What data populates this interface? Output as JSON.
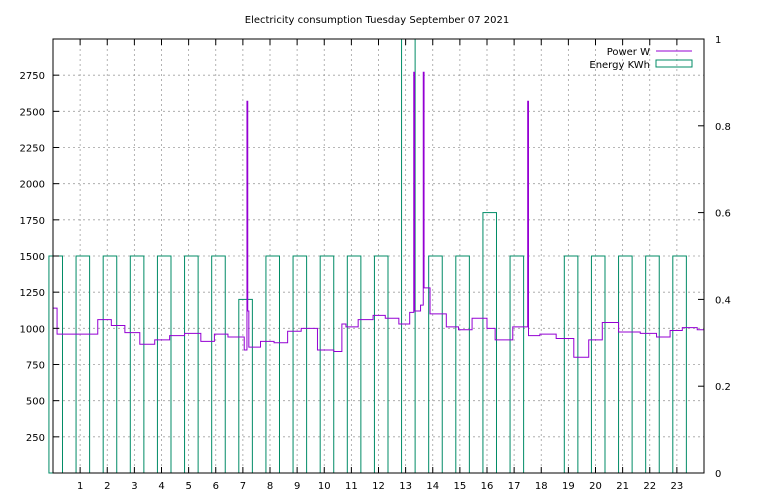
{
  "chart_data": {
    "type": "line",
    "title": "Electricity consumption Tuesday September 07 2021",
    "xlabel": "",
    "ylabel": "",
    "xlim": [
      0,
      24
    ],
    "ylim": [
      0,
      3000
    ],
    "y2lim": [
      0,
      1
    ],
    "grid": true,
    "legend_position": "top-right",
    "x_ticks": [
      1,
      2,
      3,
      4,
      5,
      6,
      7,
      8,
      9,
      10,
      11,
      12,
      13,
      14,
      15,
      16,
      17,
      18,
      19,
      20,
      21,
      22,
      23
    ],
    "y_ticks": [
      250,
      500,
      750,
      1000,
      1250,
      1500,
      1750,
      2000,
      2250,
      2500,
      2750
    ],
    "y2_ticks": [
      0,
      0.2,
      0.4,
      0.6,
      0.8,
      1
    ],
    "y2_tick_labels": [
      "0",
      "0.2",
      "0.4",
      "0.6",
      "0.8",
      "1"
    ],
    "series": [
      {
        "name": "Power W",
        "axis": "y1",
        "color": "#9400d3",
        "style": "steps",
        "points": [
          [
            0,
            1140
          ],
          [
            0.15,
            960
          ],
          [
            1.65,
            1060
          ],
          [
            2.15,
            1020
          ],
          [
            2.65,
            970
          ],
          [
            3.2,
            890
          ],
          [
            3.75,
            920
          ],
          [
            4.3,
            950
          ],
          [
            4.85,
            965
          ],
          [
            5.45,
            910
          ],
          [
            5.95,
            960
          ],
          [
            6.45,
            940
          ],
          [
            6.95,
            940
          ],
          [
            7.05,
            850
          ],
          [
            7.15,
            2570
          ],
          [
            7.18,
            1120
          ],
          [
            7.22,
            870
          ],
          [
            7.65,
            910
          ],
          [
            8.15,
            900
          ],
          [
            8.65,
            980
          ],
          [
            9.15,
            1000
          ],
          [
            9.75,
            850
          ],
          [
            10.35,
            840
          ],
          [
            10.65,
            1030
          ],
          [
            10.8,
            1010
          ],
          [
            11.25,
            1060
          ],
          [
            11.8,
            1090
          ],
          [
            12.25,
            1070
          ],
          [
            12.75,
            1030
          ],
          [
            13.15,
            1110
          ],
          [
            13.3,
            2770
          ],
          [
            13.33,
            1120
          ],
          [
            13.55,
            1160
          ],
          [
            13.65,
            2770
          ],
          [
            13.68,
            1280
          ],
          [
            13.9,
            1100
          ],
          [
            14.5,
            1010
          ],
          [
            14.95,
            990
          ],
          [
            15.45,
            1070
          ],
          [
            16.0,
            1000
          ],
          [
            16.3,
            920
          ],
          [
            16.95,
            1010
          ],
          [
            17.5,
            2570
          ],
          [
            17.53,
            950
          ],
          [
            17.95,
            960
          ],
          [
            18.55,
            930
          ],
          [
            19.2,
            800
          ],
          [
            19.75,
            920
          ],
          [
            20.25,
            1040
          ],
          [
            20.85,
            975
          ],
          [
            21.65,
            965
          ],
          [
            22.25,
            940
          ],
          [
            22.75,
            985
          ],
          [
            23.2,
            1005
          ],
          [
            23.75,
            990
          ],
          [
            24,
            990
          ]
        ]
      },
      {
        "name": "Energy KWh",
        "axis": "y2",
        "color": "#008b66",
        "style": "boxes",
        "bars": [
          [
            0.1,
            0.5
          ],
          [
            1.1,
            0.5
          ],
          [
            2.1,
            0.5
          ],
          [
            3.1,
            0.5
          ],
          [
            4.1,
            0.5
          ],
          [
            5.1,
            0.5
          ],
          [
            6.1,
            0.5
          ],
          [
            7.1,
            0.4
          ],
          [
            8.1,
            0.5
          ],
          [
            9.1,
            0.5
          ],
          [
            10.1,
            0.5
          ],
          [
            11.1,
            0.5
          ],
          [
            12.1,
            0.5
          ],
          [
            13.1,
            1.0
          ],
          [
            14.1,
            0.5
          ],
          [
            15.1,
            0.5
          ],
          [
            16.1,
            0.6
          ],
          [
            17.1,
            0.5
          ],
          [
            18.1,
            0
          ],
          [
            19.1,
            0.5
          ],
          [
            20.1,
            0.5
          ],
          [
            21.1,
            0.5
          ],
          [
            22.1,
            0.5
          ],
          [
            23.1,
            0.5
          ]
        ]
      }
    ]
  }
}
